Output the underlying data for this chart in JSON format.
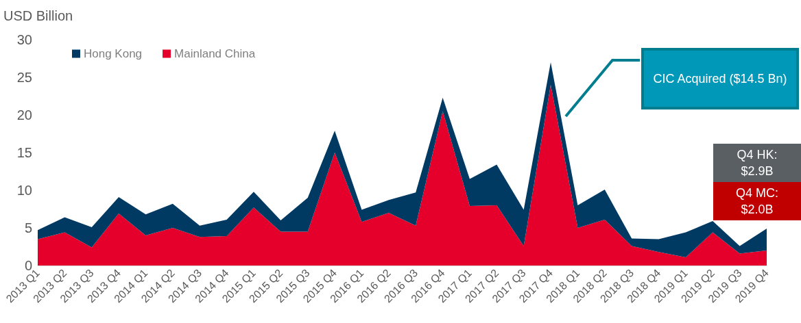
{
  "chart_data": {
    "type": "area",
    "ylabel": "USD Billion",
    "stacked": true,
    "categories": [
      "2013 Q1",
      "2013 Q2",
      "2013 Q3",
      "2013 Q4",
      "2014 Q1",
      "2014 Q2",
      "2014 Q3",
      "2014 Q4",
      "2015 Q1",
      "2015 Q2",
      "2015 Q3",
      "2015 Q4",
      "2016 Q1",
      "2016 Q2",
      "2016 Q3",
      "2016 Q4",
      "2017 Q1",
      "2017 Q2",
      "2017 Q3",
      "2017 Q4",
      "2018 Q1",
      "2018 Q2",
      "2018 Q3",
      "2018 Q4",
      "2019 Q1",
      "2019 Q2",
      "2019 Q3",
      "2019 Q4"
    ],
    "series": [
      {
        "name": "Mainland China",
        "color": "#e4002b",
        "values": [
          3.5,
          4.4,
          2.4,
          6.9,
          4.0,
          5.0,
          3.8,
          3.9,
          7.7,
          4.5,
          4.5,
          15.0,
          5.8,
          7.0,
          5.3,
          20.5,
          7.9,
          8.0,
          2.6,
          24.0,
          5.0,
          6.1,
          2.6,
          1.8,
          1.1,
          4.4,
          1.6,
          2.0
        ]
      },
      {
        "name": "Hong Kong",
        "color": "#003a63",
        "values": [
          1.2,
          2.0,
          2.7,
          2.2,
          2.8,
          3.2,
          1.5,
          2.2,
          2.1,
          1.5,
          4.5,
          2.9,
          1.6,
          1.7,
          4.4,
          1.8,
          3.6,
          5.4,
          4.8,
          3.0,
          3.0,
          4.0,
          1.0,
          1.7,
          3.3,
          1.5,
          1.0,
          2.9
        ]
      }
    ],
    "ylim": [
      0,
      30
    ],
    "yticks": [
      0,
      5,
      10,
      15,
      20,
      25,
      30
    ],
    "grid": false,
    "legend": "top left",
    "annotations": [
      "CIC Acquired ($14.5 Bn)",
      "Q4 HK: $2.9B",
      "Q4 MC: $2.0B"
    ]
  }
}
